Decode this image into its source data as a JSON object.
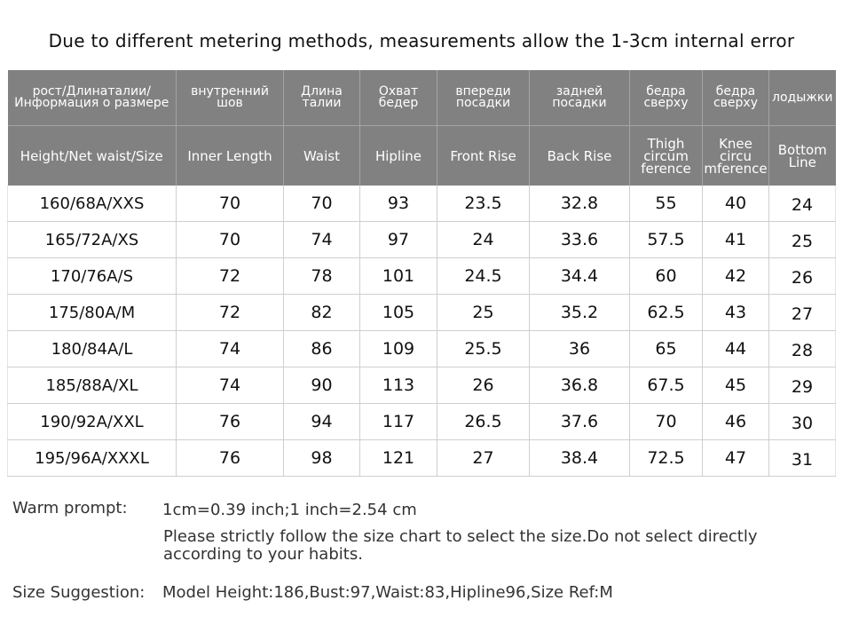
{
  "title": "Due to different metering methods, measurements allow the 1-3cm internal error",
  "table": {
    "headers_ru": [
      "рост/Длинаталии/ Информация о размере",
      "внутренний шов",
      "Длина талии",
      "Охват бедер",
      "впереди посадки",
      "задней посадки",
      "бедра сверху",
      "бедра сверху",
      "лодыжки"
    ],
    "headers_en": [
      "Height/Net waist/Size",
      "Inner  Length",
      "Waist",
      "Hipline",
      "Front Rise",
      "Back Rise",
      "Thigh circum ference",
      "Knee circu mference",
      "Bottom Line"
    ],
    "rows": [
      [
        "160/68A/XXS",
        "70",
        "70",
        "93",
        "23.5",
        "32.8",
        "55",
        "40",
        "24"
      ],
      [
        "165/72A/XS",
        "70",
        "74",
        "97",
        "24",
        "33.6",
        "57.5",
        "41",
        "25"
      ],
      [
        "170/76A/S",
        "72",
        "78",
        "101",
        "24.5",
        "34.4",
        "60",
        "42",
        "26"
      ],
      [
        "175/80A/M",
        "72",
        "82",
        "105",
        "25",
        "35.2",
        "62.5",
        "43",
        "27"
      ],
      [
        "180/84A/L",
        "74",
        "86",
        "109",
        "25.5",
        "36",
        "65",
        "44",
        "28"
      ],
      [
        "185/88A/XL",
        "74",
        "90",
        "113",
        "26",
        "36.8",
        "67.5",
        "45",
        "29"
      ],
      [
        "190/92A/XXL",
        "76",
        "94",
        "117",
        "26.5",
        "37.6",
        "70",
        "46",
        "30"
      ],
      [
        "195/96A/XXXL",
        "76",
        "98",
        "121",
        "27",
        "38.4",
        "72.5",
        "47",
        "31"
      ]
    ]
  },
  "warm_prompt": {
    "label": "Warm prompt:",
    "line1": "1cm=0.39 inch;1 inch=2.54 cm",
    "line2": "Please strictly follow the size chart  to select the size.Do not select directly according to your habits."
  },
  "size_suggestion": {
    "label": "Size Suggestion:",
    "value": "Model Height:186,Bust:97,Waist:83,Hipline96,Size Ref:M"
  },
  "colors": {
    "header_bg": "#818181",
    "header_text": "#ffffff",
    "grid_line": "#cfcfcf"
  }
}
